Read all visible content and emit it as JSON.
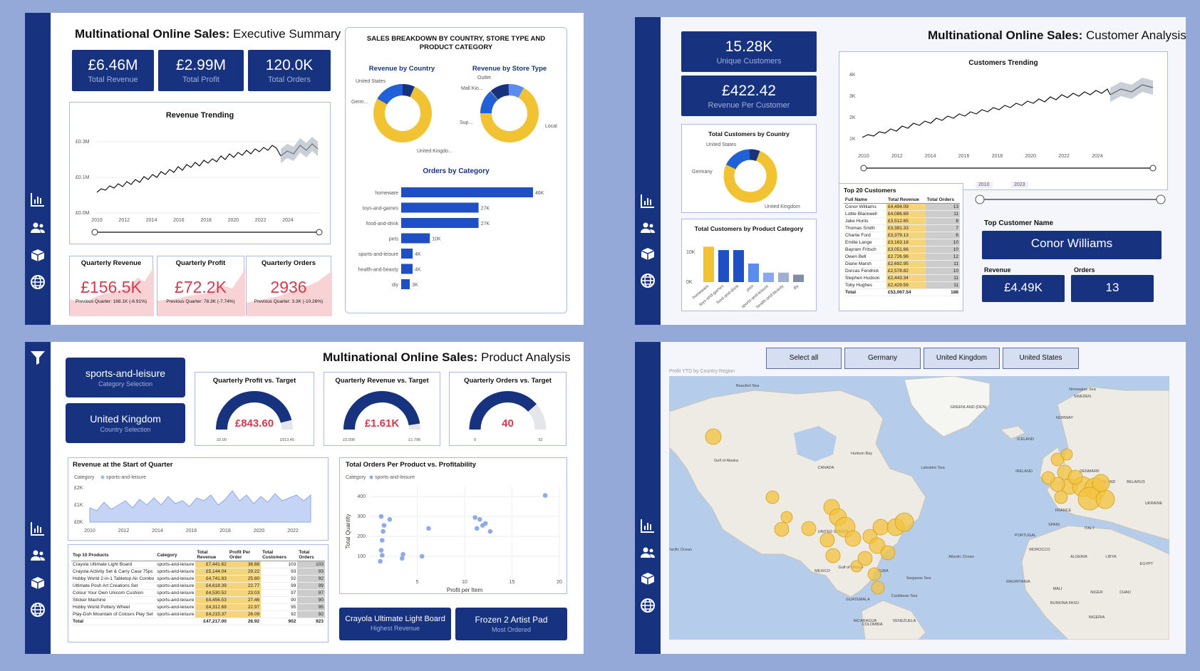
{
  "exec": {
    "title_bold": "Multinational Online Sales:",
    "title_rest": "Executive Summary",
    "kpis": [
      {
        "value": "£6.46M",
        "label": "Total Revenue"
      },
      {
        "value": "£2.99M",
        "label": "Total Profit"
      },
      {
        "value": "120.0K",
        "label": "Total Orders"
      }
    ],
    "revenue_trending": {
      "title": "Revenue Trending",
      "y_ticks": [
        "£0.3M",
        "£0.1M",
        "£0.0M"
      ],
      "x_ticks": [
        "2010",
        "2012",
        "2014",
        "2016",
        "2018",
        "2020",
        "2022",
        "2024"
      ]
    },
    "breakdown_title": "SALES BREAKDOWN BY COUNTRY, STORE TYPE AND PRODUCT CATEGORY",
    "revenue_by_country": {
      "title": "Revenue by Country",
      "labels": [
        "United States",
        "Germ...",
        "United Kingdo..."
      ]
    },
    "revenue_by_store": {
      "title": "Revenue by Store Type",
      "labels": [
        "Outlet",
        "Mall Kio...",
        "Sup...",
        "Local"
      ]
    },
    "orders_by_category": {
      "title": "Orders by Category",
      "categories": [
        "homeware",
        "toys-and-games",
        "food-and-drink",
        "pets",
        "sports-and-leisure",
        "health-and-beauty",
        "diy"
      ],
      "values": [
        46,
        27,
        27,
        10,
        4,
        4,
        3
      ],
      "labels": [
        "46K",
        "27K",
        "27K",
        "10K",
        "4K",
        "4K",
        "3K"
      ]
    },
    "quarterly": [
      {
        "title": "Quarterly Revenue",
        "value": "£156.5K",
        "prev": "Previous Quarter: 168.1K (-6.91%)"
      },
      {
        "title": "Quarterly Profit",
        "value": "£72.2K",
        "prev": "Previous Quarter: 78.3K (-7.74%)"
      },
      {
        "title": "Quarterly Orders",
        "value": "2936",
        "prev": "Previous Quarter: 3.3K (-10.26%)"
      }
    ]
  },
  "customer": {
    "title_bold": "Multinational Online Sales:",
    "title_rest": "Customer Analysis",
    "kpis": [
      {
        "value": "15.28K",
        "label": "Unique Customers"
      },
      {
        "value": "£422.42",
        "label": "Revenue Per Customer"
      }
    ],
    "trending": {
      "title": "Customers Trending",
      "y_ticks": [
        "4K",
        "3K",
        "2K",
        "1K"
      ],
      "x_ticks": [
        "2010",
        "2012",
        "2014",
        "2016",
        "2018",
        "2020",
        "2022",
        "2024"
      ]
    },
    "by_country": {
      "title": "Total Customers by Country",
      "labels": [
        "United States",
        "Germany",
        "United Kingdom"
      ]
    },
    "by_category": {
      "title": "Total Customers by Product Category",
      "y_ticks": [
        "10K",
        "0K"
      ],
      "categories": [
        "homeware",
        "toys-and-games",
        "food-and-drink",
        "pets",
        "sports-and-leisure",
        "health-and-beauty",
        "diy"
      ],
      "values": [
        10.5,
        9.5,
        9.5,
        5.5,
        2.8,
        2.8,
        2.2
      ]
    },
    "top20": {
      "title": "Top 20 Customers",
      "headers": [
        "Full Name",
        "Total Revenue",
        "Total Orders"
      ],
      "rows": [
        [
          "Conor Williams",
          "£4,494.09",
          "13"
        ],
        [
          "Lottie Blackwell",
          "£4,086.69",
          "11"
        ],
        [
          "Jake Hunts",
          "£3,512.65",
          "8"
        ],
        [
          "Thomas Smith",
          "£3,381.33",
          "7"
        ],
        [
          "Charlie Ford",
          "£3,379.13",
          "6"
        ],
        [
          "Emilie Lange",
          "£3,163.18",
          "10"
        ],
        [
          "Bayram Fritsch",
          "£3,051.66",
          "10"
        ],
        [
          "Owen Bell",
          "£2,726.96",
          "12"
        ],
        [
          "Diane Marsh",
          "£2,692.95",
          "11"
        ],
        [
          "Dorcas Fendrick",
          "£2,578.82",
          "10"
        ],
        [
          "Stephen Hudson",
          "£2,443.34",
          "11"
        ],
        [
          "Toby Hughes",
          "£2,429.59",
          "11"
        ]
      ],
      "total": [
        "Total",
        "£53,067.54",
        "188"
      ]
    },
    "slider_from": "2010",
    "slider_to": "2023",
    "top_customer_label": "Top Customer Name",
    "top_customer_name": "Conor Williams",
    "revenue_label": "Revenue",
    "orders_label": "Orders",
    "revenue_value": "£4.49K",
    "orders_value": "13"
  },
  "product": {
    "title_bold": "Multinational Online Sales:",
    "title_rest": "Product Analysis",
    "category_selection": {
      "value": "sports-and-leisure",
      "label": "Category Selection"
    },
    "country_selection": {
      "value": "United Kingdom",
      "label": "Country Selection"
    },
    "gauges": [
      {
        "title": "Quarterly Profit vs. Target",
        "value": "£843.60",
        "min": "£0.00",
        "max": "£913.45",
        "fraction": 0.92
      },
      {
        "title": "Quarterly Revenue vs. Target",
        "value": "£1.61K",
        "min": "£0.00K",
        "max": "£1.70K",
        "fraction": 0.95
      },
      {
        "title": "Quarterly Orders vs. Target",
        "value": "40",
        "min": "0",
        "max": "52",
        "fraction": 0.77
      }
    ],
    "revenue_start": {
      "title": "Revenue at the Start of Quarter",
      "legend_label": "Category",
      "legend_item": "sports-and-leisure",
      "y_ticks": [
        "£2K",
        "£1K",
        "£0K"
      ],
      "x_ticks": [
        "2010",
        "2012",
        "2014",
        "2016",
        "2018",
        "2020",
        "2022"
      ]
    },
    "scatter": {
      "title": "Total Orders Per Product vs. Profitability",
      "legend_label": "Category",
      "legend_item": "sports-and-leisure",
      "xlabel": "Profit per Item",
      "ylabel": "Total Quantity",
      "x_ticks": [
        "5",
        "10",
        "15",
        "20"
      ],
      "y_ticks": [
        "400",
        "300",
        "200",
        "100"
      ],
      "xlim": [
        0,
        20
      ],
      "ylim": [
        0,
        450
      ]
    },
    "top10": {
      "headers": [
        "Top 10 Products",
        "Category",
        "Total Revenue",
        "Profit Per Order",
        "Total Customers",
        "Total Orders"
      ],
      "rows": [
        [
          "Crayola Ultimate Light Board",
          "sports-and-leisure",
          "£7,441.62",
          "38.88",
          "103",
          "103"
        ],
        [
          "Crayola Activity Set & Carry Case 75pc",
          "sports-and-leisure",
          "£5,144.04",
          "29.22",
          "93",
          "93"
        ],
        [
          "Hobby World 2-in-1 Tabletop Air Combo",
          "sports-and-leisure",
          "£4,741.83",
          "25.80",
          "92",
          "92"
        ],
        [
          "Ultimate Posh Art Creations Set",
          "sports-and-leisure",
          "£4,618.39",
          "22.77",
          "99",
          "99"
        ],
        [
          "Colour Your Own Unicorn Cushion",
          "sports-and-leisure",
          "£4,530.52",
          "23.03",
          "97",
          "97"
        ],
        [
          "Sticker Machine",
          "sports-and-leisure",
          "£4,456.53",
          "27.46",
          "90",
          "90"
        ],
        [
          "Hobby World Pottery Wheel",
          "sports-and-leisure",
          "£4,312.68",
          "22.97",
          "95",
          "95"
        ],
        [
          "Play-Doh Mountain of Colours Play Set",
          "sports-and-leisure",
          "£4,215.37",
          "26.09",
          "92",
          "92"
        ]
      ],
      "total": [
        "Total",
        "",
        "£47,217.00",
        "26.92",
        "902",
        "923"
      ]
    },
    "highlight1": {
      "value": "Crayola Ultimate Light Board",
      "label": "Highest Revenue"
    },
    "highlight2": {
      "value": "Frozen 2 Artist Pad",
      "label": "Most Ordered"
    }
  },
  "map": {
    "buttons": [
      "Select all",
      "Germany",
      "United Kingdom",
      "United States"
    ],
    "subtitle": "Profit YTD by Country Region",
    "place_labels": [
      "CANADA",
      "UNITED STATES",
      "Hudson Bay",
      "Gulf of Alaska",
      "Beaufort Sea",
      "GREENLAND (DEN)",
      "ICELAND",
      "NORWAY",
      "SWEDEN",
      "Norwegian Sea",
      "Labrador Sea",
      "DENMARK",
      "POLAND",
      "BELARUS",
      "UKRAINE",
      "FRANCE",
      "SPAIN",
      "PORTUGAL",
      "ITALY",
      "MOROCCO",
      "ALGERIA",
      "LIBYA",
      "EGYPT",
      "MALI",
      "NIGER",
      "CHAD",
      "MAURITANIA",
      "BURKINA FASO",
      "NIGERIA",
      "MEXICO",
      "Gulf of Mexico",
      "CUBA",
      "Caribbean Sea",
      "GUATEMALA",
      "NICARAGUA",
      "VENEZUELA",
      "COLOMBIA",
      "Atlantic Ocean",
      "Pacific Ocean",
      "Sargasso Sea",
      "IRELAND"
    ]
  }
}
